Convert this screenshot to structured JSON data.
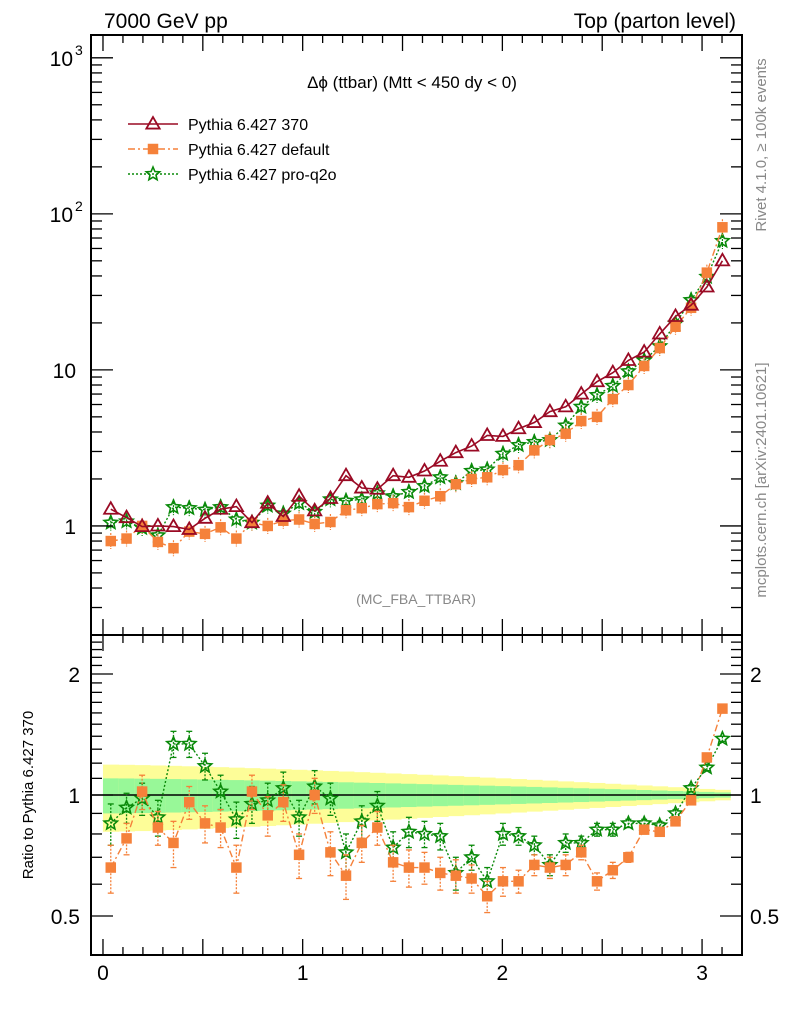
{
  "header": {
    "left_label": "7000 GeV pp",
    "right_label": "Top (parton level)"
  },
  "side_labels": {
    "upper": "Rivet 4.1.0, ≥ 100k events",
    "lower": "mcplots.cern.ch [arXiv:2401.10621]"
  },
  "chart_data": [
    {
      "type": "line",
      "panel": "main",
      "title": "Δϕ (ttbar) (Mtt < 450 dy < 0)",
      "watermark": "(MC_FBA_TTBAR)",
      "xlabel": "",
      "ylabel": "",
      "yscale": "log",
      "xlim": [
        -0.06,
        3.2
      ],
      "ylim": [
        0.2,
        1400
      ],
      "grid": false,
      "legend_position": "top-left",
      "ytick_labels": [
        {
          "value": 1000,
          "label": "10",
          "sup": "3"
        },
        {
          "value": 100,
          "label": "10",
          "sup": "2"
        },
        {
          "value": 10,
          "label": "10",
          "sup": ""
        },
        {
          "value": 1,
          "label": "1",
          "sup": ""
        }
      ],
      "x": [
        0.039,
        0.118,
        0.196,
        0.275,
        0.353,
        0.432,
        0.511,
        0.589,
        0.668,
        0.746,
        0.825,
        0.903,
        0.982,
        1.06,
        1.139,
        1.217,
        1.296,
        1.374,
        1.453,
        1.532,
        1.61,
        1.689,
        1.767,
        1.846,
        1.924,
        2.003,
        2.081,
        2.16,
        2.238,
        2.317,
        2.395,
        2.474,
        2.553,
        2.631,
        2.71,
        2.788,
        2.867,
        2.945,
        3.024,
        3.102
      ],
      "series": [
        {
          "name": "Pythia 6.427 370",
          "color": "#9a0a24",
          "marker": "triangle-open",
          "line": "solid",
          "values": [
            1.28,
            1.13,
            0.99,
            1.0,
            0.99,
            0.95,
            1.12,
            1.28,
            1.33,
            1.05,
            1.4,
            1.15,
            1.55,
            1.25,
            1.5,
            2.1,
            1.75,
            1.72,
            2.1,
            2.05,
            2.25,
            2.6,
            2.95,
            3.25,
            3.8,
            3.75,
            4.2,
            4.6,
            5.4,
            5.8,
            7.0,
            8.4,
            9.6,
            11.5,
            13.0,
            17.0,
            22.0,
            26.0,
            34.0,
            50.0
          ]
        },
        {
          "name": "Pythia 6.427 default",
          "color": "#f5813a",
          "marker": "square",
          "line": "dashdot",
          "values": [
            0.8,
            0.83,
            1.0,
            0.79,
            0.72,
            0.92,
            0.89,
            0.98,
            0.83,
            1.05,
            1.0,
            1.08,
            1.1,
            1.03,
            1.06,
            1.26,
            1.3,
            1.38,
            1.4,
            1.32,
            1.45,
            1.55,
            1.85,
            2.0,
            2.05,
            2.28,
            2.45,
            3.05,
            3.55,
            3.9,
            4.7,
            5.0,
            6.5,
            8.0,
            10.6,
            13.8,
            18.9,
            25.0,
            42.0,
            82.0
          ]
        },
        {
          "name": "Pythia 6.427 pro-q2o",
          "color": "#0a8a0a",
          "marker": "star-open",
          "line": "dotted",
          "values": [
            1.05,
            1.07,
            0.97,
            0.87,
            1.32,
            1.3,
            1.27,
            1.32,
            1.1,
            1.05,
            1.35,
            1.2,
            1.4,
            1.23,
            1.48,
            1.45,
            1.48,
            1.62,
            1.55,
            1.65,
            1.8,
            2.05,
            1.88,
            2.25,
            2.3,
            2.9,
            3.3,
            3.45,
            3.55,
            4.4,
            5.8,
            6.9,
            7.9,
            9.8,
            11.5,
            14.2,
            19.8,
            28.0,
            39.5,
            67.0
          ]
        }
      ]
    },
    {
      "type": "line",
      "panel": "ratio",
      "ylabel": "Ratio to Pythia 6.427 370",
      "yscale": "log",
      "xlim": [
        -0.06,
        3.2
      ],
      "ylim": [
        0.4,
        2.5
      ],
      "xticks": [
        0,
        1,
        2,
        3
      ],
      "xtick_labels": [
        "0",
        "1",
        "2",
        "3"
      ],
      "yticks": [
        0.5,
        1,
        2
      ],
      "ytick_labels": [
        "0.5",
        "1",
        "2"
      ],
      "reference_line": 1,
      "band_colors": {
        "inner": "#98f898",
        "outer": "#fdfd98"
      },
      "band_inner_halfwidth_start": 0.1,
      "band_inner_halfwidth_end": 0.015,
      "band_outer_halfwidth_start": 0.19,
      "band_outer_halfwidth_end": 0.03,
      "series": [
        {
          "name": "Pythia 6.427 default",
          "color": "#f5813a",
          "values": [
            0.66,
            0.78,
            1.02,
            0.83,
            0.76,
            0.96,
            0.85,
            0.83,
            0.66,
            1.02,
            0.89,
            0.96,
            0.71,
            1.0,
            0.72,
            0.63,
            0.76,
            0.83,
            0.68,
            0.66,
            0.66,
            0.64,
            0.63,
            0.62,
            0.56,
            0.61,
            0.61,
            0.67,
            0.66,
            0.67,
            0.72,
            0.61,
            0.65,
            0.7,
            0.82,
            0.81,
            0.86,
            0.97,
            1.24,
            1.64
          ],
          "errors": [
            0.09,
            0.07,
            0.1,
            0.08,
            0.1,
            0.09,
            0.09,
            0.09,
            0.09,
            0.1,
            0.1,
            0.1,
            0.09,
            0.1,
            0.09,
            0.08,
            0.08,
            0.08,
            0.07,
            0.07,
            0.06,
            0.06,
            0.06,
            0.05,
            0.05,
            0.05,
            0.04,
            0.04,
            0.04,
            0.04,
            0.03,
            0.03,
            0.03,
            0.02,
            0.02,
            0.02,
            0.02,
            0.02,
            0.02,
            0.02
          ]
        },
        {
          "name": "Pythia 6.427 pro-q2o",
          "color": "#0a8a0a",
          "values": [
            0.85,
            0.93,
            0.98,
            0.88,
            1.34,
            1.34,
            1.18,
            1.02,
            0.87,
            0.95,
            0.97,
            1.04,
            0.88,
            1.05,
            0.98,
            0.72,
            0.86,
            0.94,
            0.74,
            0.81,
            0.8,
            0.79,
            0.64,
            0.7,
            0.61,
            0.8,
            0.79,
            0.75,
            0.67,
            0.76,
            0.76,
            0.82,
            0.82,
            0.85,
            0.85,
            0.84,
            0.9,
            1.04,
            1.17,
            1.38
          ],
          "errors": [
            0.1,
            0.08,
            0.09,
            0.09,
            0.1,
            0.1,
            0.09,
            0.1,
            0.09,
            0.1,
            0.1,
            0.1,
            0.09,
            0.1,
            0.09,
            0.08,
            0.08,
            0.08,
            0.07,
            0.07,
            0.06,
            0.06,
            0.06,
            0.05,
            0.05,
            0.05,
            0.04,
            0.04,
            0.04,
            0.04,
            0.03,
            0.03,
            0.03,
            0.02,
            0.02,
            0.02,
            0.02,
            0.02,
            0.02,
            0.02
          ]
        }
      ]
    }
  ],
  "axis_labels": {
    "main_x_ticks": [
      "0",
      "1",
      "2",
      "3"
    ]
  }
}
